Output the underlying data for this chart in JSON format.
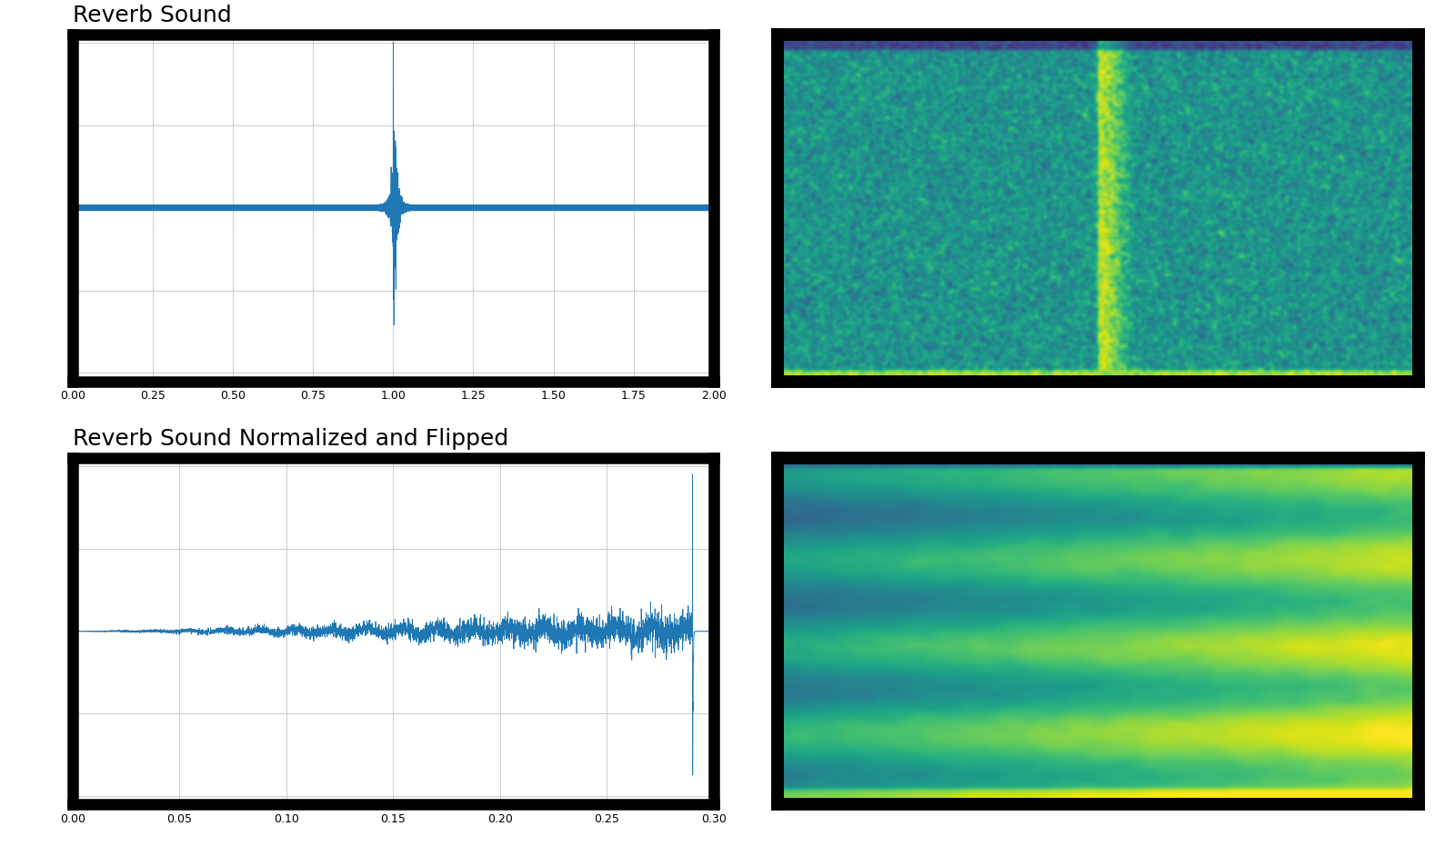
{
  "title_top_left": "Reverb Sound",
  "title_bottom_left": "Reverb Sound Normalized and Flipped",
  "waveform_color": "#1f77b4",
  "bg_color": "white",
  "figure_bg": "white",
  "grid_color": "#cccccc",
  "border_color": "black",
  "spectrogram_cmap": "viridis",
  "sample_rate": 16000,
  "duration_reverb": 2.0,
  "duration_flipped": 0.3,
  "title_fontsize": 18
}
